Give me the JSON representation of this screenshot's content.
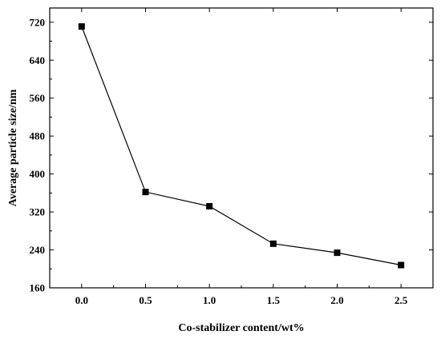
{
  "chart_data": {
    "type": "line",
    "title": "",
    "xlabel": "Co-stabilizer content/wt%",
    "ylabel": "Average particle size/nm",
    "x": [
      0.0,
      0.5,
      1.0,
      1.5,
      2.0,
      2.5
    ],
    "series": [
      {
        "values": [
          711,
          362,
          332,
          253,
          234,
          208
        ]
      }
    ],
    "xlim": [
      -0.25,
      2.75
    ],
    "ylim": [
      160,
      750
    ],
    "xticks": [
      "0.0",
      "0.5",
      "1.0",
      "1.5",
      "2.0",
      "2.5"
    ],
    "yticks": [
      "160",
      "240",
      "320",
      "400",
      "480",
      "560",
      "640",
      "720"
    ],
    "grid": false,
    "legend": "none",
    "marker": "square",
    "color": "#000000"
  }
}
